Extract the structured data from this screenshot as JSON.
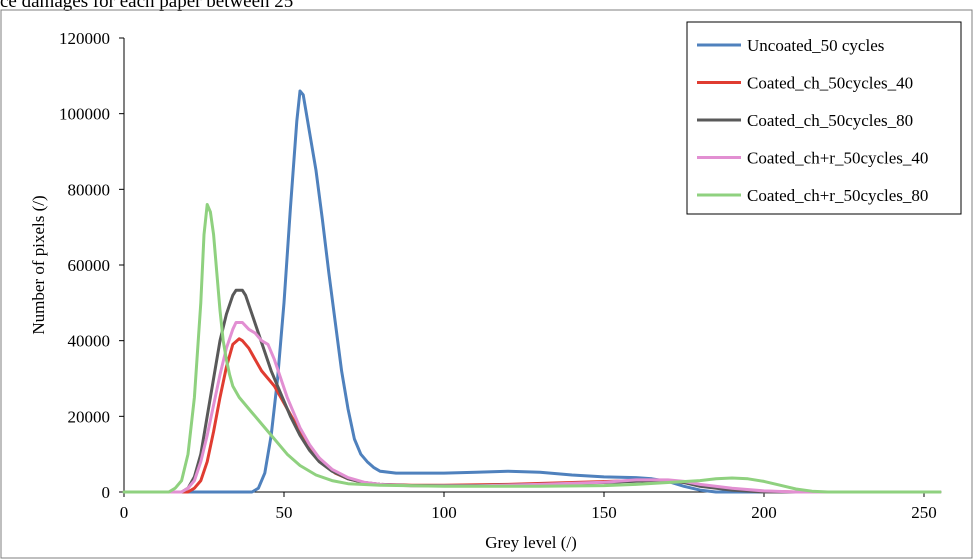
{
  "caption": "ce damages for each paper between 25",
  "chart_data": {
    "type": "line",
    "xlabel": "Grey level (/)",
    "ylabel": "Number of pixels (/)",
    "xlim": [
      0,
      255
    ],
    "ylim": [
      0,
      120000
    ],
    "x_ticks": [
      0,
      50,
      100,
      150,
      200,
      250
    ],
    "y_ticks": [
      0,
      20000,
      40000,
      60000,
      80000,
      100000,
      120000
    ],
    "legend_position": "top-right",
    "grid": false,
    "series": [
      {
        "name": "Uncoated_50 cycles",
        "color": "#4f81bd",
        "points": [
          [
            0,
            0
          ],
          [
            40,
            0
          ],
          [
            42,
            1000
          ],
          [
            44,
            5000
          ],
          [
            46,
            15000
          ],
          [
            48,
            30000
          ],
          [
            50,
            50000
          ],
          [
            52,
            75000
          ],
          [
            54,
            98000
          ],
          [
            55,
            106000
          ],
          [
            56,
            105000
          ],
          [
            58,
            95000
          ],
          [
            60,
            85000
          ],
          [
            62,
            72000
          ],
          [
            64,
            58000
          ],
          [
            66,
            45000
          ],
          [
            68,
            32000
          ],
          [
            70,
            22000
          ],
          [
            72,
            14000
          ],
          [
            74,
            10000
          ],
          [
            76,
            8000
          ],
          [
            78,
            6500
          ],
          [
            80,
            5500
          ],
          [
            85,
            5000
          ],
          [
            90,
            5000
          ],
          [
            100,
            5000
          ],
          [
            110,
            5200
          ],
          [
            120,
            5500
          ],
          [
            130,
            5200
          ],
          [
            140,
            4500
          ],
          [
            150,
            4000
          ],
          [
            160,
            3800
          ],
          [
            165,
            3500
          ],
          [
            170,
            2800
          ],
          [
            175,
            1500
          ],
          [
            180,
            500
          ],
          [
            185,
            0
          ],
          [
            255,
            0
          ]
        ]
      },
      {
        "name": "Coated_ch_50cycles_40",
        "color": "#e03c31",
        "points": [
          [
            0,
            0
          ],
          [
            20,
            0
          ],
          [
            22,
            1000
          ],
          [
            24,
            3000
          ],
          [
            26,
            8000
          ],
          [
            28,
            16000
          ],
          [
            30,
            25000
          ],
          [
            32,
            33000
          ],
          [
            34,
            39000
          ],
          [
            36,
            40500
          ],
          [
            37,
            40000
          ],
          [
            39,
            38000
          ],
          [
            41,
            35000
          ],
          [
            43,
            32000
          ],
          [
            45,
            30000
          ],
          [
            47,
            28000
          ],
          [
            49,
            25000
          ],
          [
            51,
            22000
          ],
          [
            53,
            19000
          ],
          [
            55,
            16000
          ],
          [
            57,
            13000
          ],
          [
            60,
            10000
          ],
          [
            63,
            7000
          ],
          [
            66,
            5000
          ],
          [
            70,
            3500
          ],
          [
            75,
            2500
          ],
          [
            80,
            2000
          ],
          [
            90,
            1800
          ],
          [
            100,
            1800
          ],
          [
            120,
            2000
          ],
          [
            140,
            2500
          ],
          [
            160,
            3000
          ],
          [
            170,
            3000
          ],
          [
            175,
            2500
          ],
          [
            180,
            1800
          ],
          [
            190,
            800
          ],
          [
            200,
            200
          ],
          [
            210,
            0
          ],
          [
            255,
            0
          ]
        ]
      },
      {
        "name": "Coated_ch_50cycles_80",
        "color": "#595959",
        "points": [
          [
            0,
            0
          ],
          [
            18,
            0
          ],
          [
            20,
            1000
          ],
          [
            22,
            4000
          ],
          [
            24,
            10000
          ],
          [
            26,
            20000
          ],
          [
            28,
            30000
          ],
          [
            30,
            40000
          ],
          [
            32,
            47000
          ],
          [
            34,
            52000
          ],
          [
            35,
            53300
          ],
          [
            37,
            53300
          ],
          [
            38,
            52000
          ],
          [
            40,
            47000
          ],
          [
            42,
            42000
          ],
          [
            44,
            37000
          ],
          [
            46,
            32000
          ],
          [
            48,
            28000
          ],
          [
            50,
            24000
          ],
          [
            52,
            20000
          ],
          [
            55,
            15000
          ],
          [
            58,
            11000
          ],
          [
            61,
            8000
          ],
          [
            65,
            5500
          ],
          [
            70,
            3500
          ],
          [
            75,
            2500
          ],
          [
            80,
            2000
          ],
          [
            90,
            1700
          ],
          [
            110,
            1700
          ],
          [
            130,
            2000
          ],
          [
            150,
            2500
          ],
          [
            165,
            3000
          ],
          [
            170,
            3000
          ],
          [
            175,
            2500
          ],
          [
            180,
            1500
          ],
          [
            190,
            500
          ],
          [
            200,
            0
          ],
          [
            255,
            0
          ]
        ]
      },
      {
        "name": "Coated_ch+r_50cycles_40",
        "color": "#e28fd2",
        "points": [
          [
            0,
            0
          ],
          [
            18,
            0
          ],
          [
            20,
            1000
          ],
          [
            22,
            3000
          ],
          [
            24,
            8000
          ],
          [
            26,
            15000
          ],
          [
            28,
            23000
          ],
          [
            30,
            31000
          ],
          [
            32,
            38000
          ],
          [
            34,
            43000
          ],
          [
            35,
            44800
          ],
          [
            37,
            44800
          ],
          [
            39,
            43000
          ],
          [
            41,
            42000
          ],
          [
            43,
            40000
          ],
          [
            45,
            39000
          ],
          [
            47,
            35000
          ],
          [
            49,
            30000
          ],
          [
            51,
            25000
          ],
          [
            53,
            21000
          ],
          [
            55,
            17000
          ],
          [
            58,
            12500
          ],
          [
            61,
            9000
          ],
          [
            65,
            6000
          ],
          [
            70,
            3800
          ],
          [
            75,
            2600
          ],
          [
            80,
            2000
          ],
          [
            90,
            1600
          ],
          [
            110,
            1600
          ],
          [
            130,
            2000
          ],
          [
            150,
            2600
          ],
          [
            160,
            3200
          ],
          [
            170,
            3200
          ],
          [
            175,
            2800
          ],
          [
            180,
            2000
          ],
          [
            190,
            1000
          ],
          [
            200,
            300
          ],
          [
            210,
            0
          ],
          [
            255,
            0
          ]
        ]
      },
      {
        "name": "Coated_ch+r_50cycles_80",
        "color": "#8fd17f",
        "points": [
          [
            0,
            0
          ],
          [
            14,
            0
          ],
          [
            16,
            1000
          ],
          [
            18,
            3000
          ],
          [
            20,
            10000
          ],
          [
            22,
            25000
          ],
          [
            24,
            50000
          ],
          [
            25,
            68000
          ],
          [
            26,
            76000
          ],
          [
            27,
            74000
          ],
          [
            28,
            68000
          ],
          [
            29,
            58000
          ],
          [
            30,
            48000
          ],
          [
            31,
            40000
          ],
          [
            32,
            35000
          ],
          [
            33,
            31000
          ],
          [
            34,
            28000
          ],
          [
            36,
            25000
          ],
          [
            38,
            23000
          ],
          [
            40,
            21000
          ],
          [
            42,
            19000
          ],
          [
            45,
            16000
          ],
          [
            48,
            13000
          ],
          [
            51,
            10000
          ],
          [
            55,
            7000
          ],
          [
            60,
            4500
          ],
          [
            65,
            3000
          ],
          [
            70,
            2200
          ],
          [
            80,
            1800
          ],
          [
            100,
            1500
          ],
          [
            130,
            1500
          ],
          [
            150,
            1700
          ],
          [
            160,
            2000
          ],
          [
            170,
            2500
          ],
          [
            180,
            3000
          ],
          [
            185,
            3500
          ],
          [
            190,
            3700
          ],
          [
            195,
            3500
          ],
          [
            200,
            2800
          ],
          [
            205,
            1800
          ],
          [
            210,
            800
          ],
          [
            215,
            200
          ],
          [
            220,
            0
          ],
          [
            255,
            0
          ]
        ]
      }
    ]
  }
}
